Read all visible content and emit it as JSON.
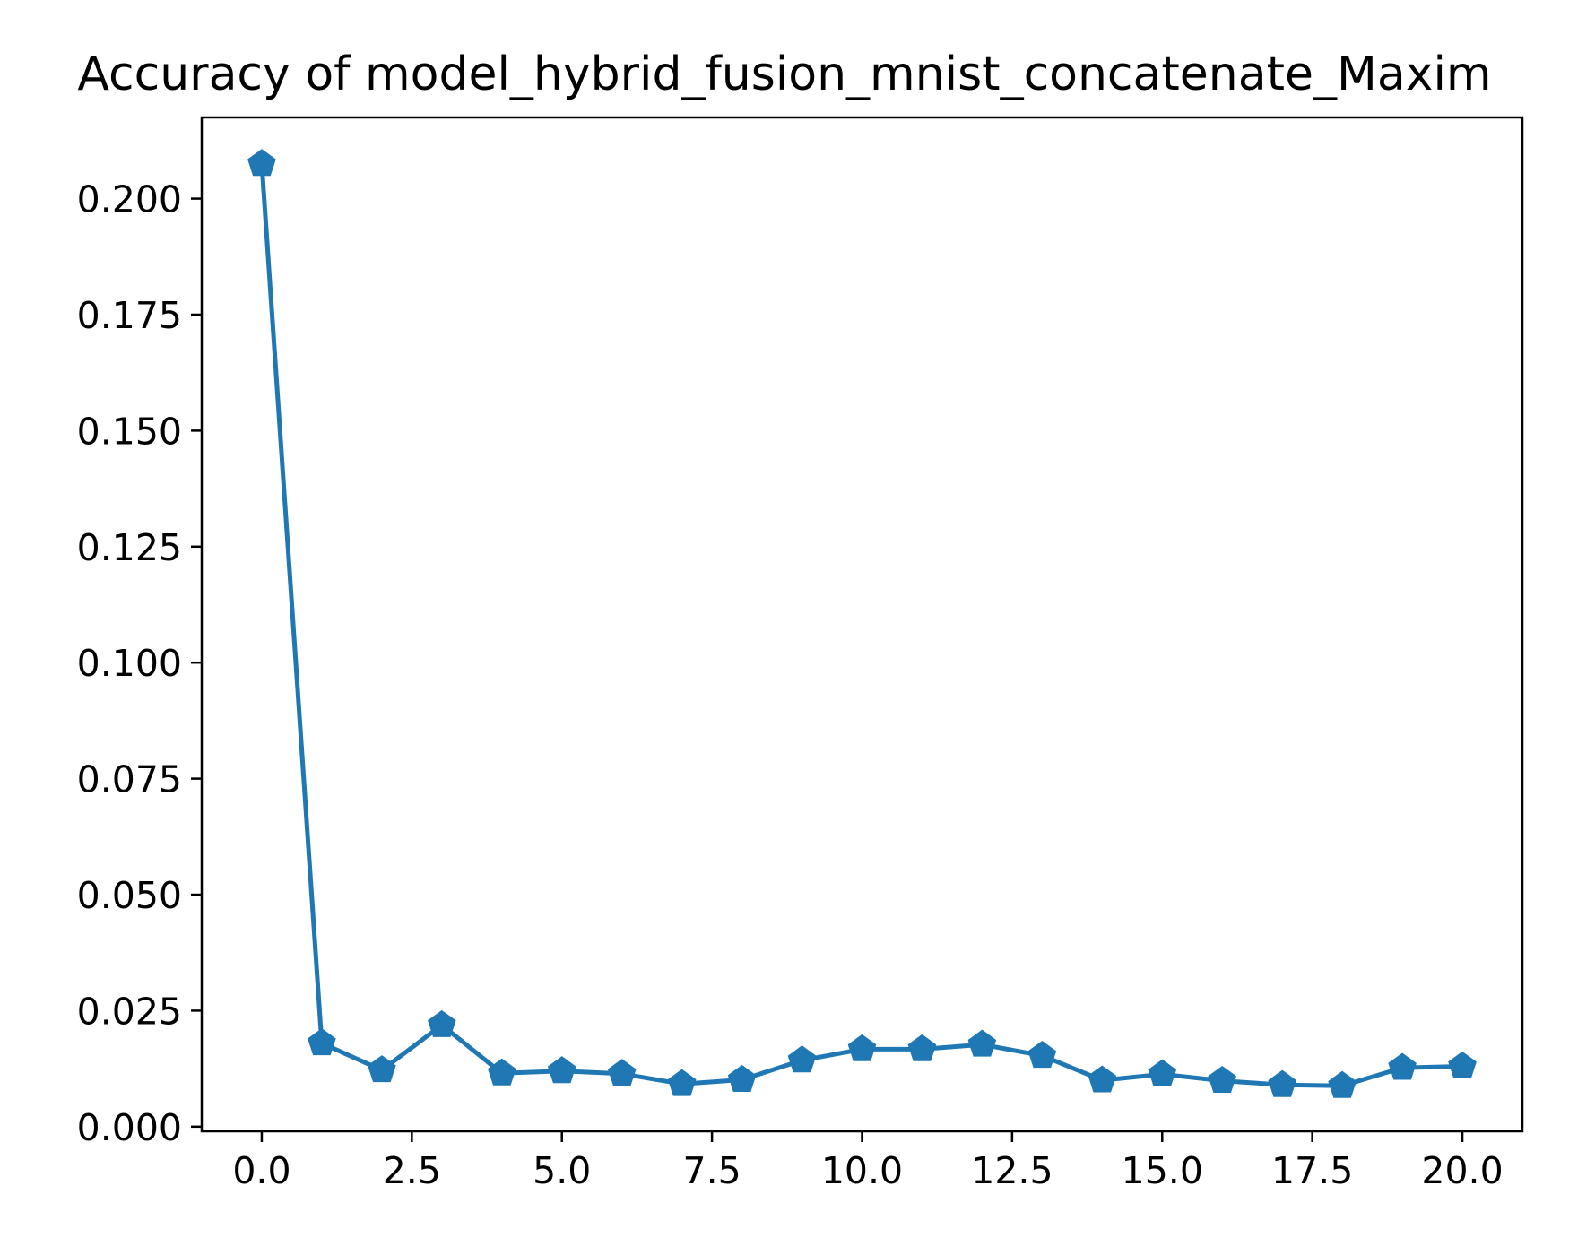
{
  "chart_data": {
    "type": "line",
    "title": "Accuracy of model_hybrid_fusion_mnist_concatenate_Maxim",
    "xlabel": "",
    "ylabel": "",
    "x": [
      0,
      1,
      2,
      3,
      4,
      5,
      6,
      7,
      8,
      9,
      10,
      11,
      12,
      13,
      14,
      15,
      16,
      17,
      18,
      19,
      20
    ],
    "series": [
      {
        "values": [
          0.2075,
          0.018,
          0.0122,
          0.0219,
          0.0115,
          0.012,
          0.0114,
          0.0092,
          0.0101,
          0.0143,
          0.0167,
          0.0167,
          0.0177,
          0.0153,
          0.01,
          0.0113,
          0.0099,
          0.009,
          0.0088,
          0.0127,
          0.013
        ],
        "color": "#1f77b4",
        "marker": "pentagon"
      }
    ],
    "xlim": [
      -1,
      21
    ],
    "ylim": [
      -0.001,
      0.2175
    ],
    "xticks": [
      0.0,
      2.5,
      5.0,
      7.5,
      10.0,
      12.5,
      15.0,
      17.5,
      20.0
    ],
    "xtick_labels": [
      "0.0",
      "2.5",
      "5.0",
      "7.5",
      "10.0",
      "12.5",
      "15.0",
      "17.5",
      "20.0"
    ],
    "yticks": [
      0.0,
      0.025,
      0.05,
      0.075,
      0.1,
      0.125,
      0.15,
      0.175,
      0.2
    ],
    "ytick_labels": [
      "0.000",
      "0.025",
      "0.050",
      "0.075",
      "0.100",
      "0.125",
      "0.150",
      "0.175",
      "0.200"
    ],
    "grid": false,
    "legend": "none"
  }
}
